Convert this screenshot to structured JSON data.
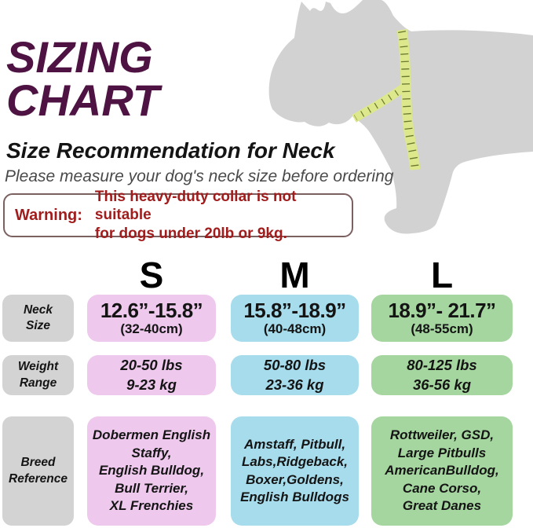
{
  "title": {
    "line1": "SIZING",
    "line2": "CHART"
  },
  "subtitle": "Size Recommendation for Neck",
  "note": "Please measure your dog's neck size before ordering",
  "warning": {
    "label": "Warning:",
    "lines": [
      "This heavy-duty collar is not suitable",
      "for dogs under 20lb or 9kg."
    ]
  },
  "illustration": {
    "name": "dog-silhouette-with-measuring-tape"
  },
  "colors": {
    "title_purple": "#4e1343",
    "warning_red": "#a11d1d",
    "warning_border": "#7b6060",
    "note_gray": "#4a4a4a",
    "label_gray": "#d3d3d3",
    "size_s_pink": "#eec9ed",
    "size_m_blue": "#a7dcec",
    "size_l_green": "#a5d69f",
    "dog_gray": "#d2d2d2",
    "tape_green": "#dde88c",
    "tape_tick": "#55641f"
  },
  "table": {
    "row_labels": {
      "neck": [
        "Neck",
        "Size"
      ],
      "weight": [
        "Weight",
        "Range"
      ],
      "breed": [
        "Breed",
        "Reference"
      ]
    },
    "columns": [
      {
        "letter": "S",
        "neck_in": "12.6”-15.8”",
        "neck_cm": "(32-40cm)",
        "weight": [
          "20-50 lbs",
          "9-23 kg"
        ],
        "breeds": [
          "Dobermen English",
          "Staffy,",
          "English Bulldog,",
          "Bull Terrier,",
          "XL Frenchies"
        ]
      },
      {
        "letter": "M",
        "neck_in": "15.8”-18.9”",
        "neck_cm": "(40-48cm)",
        "weight": [
          "50-80 lbs",
          "23-36 kg"
        ],
        "breeds": [
          "Amstaff, Pitbull,",
          "Labs,Ridgeback,",
          "Boxer,Goldens,",
          "English Bulldogs"
        ]
      },
      {
        "letter": "L",
        "neck_in": "18.9”- 21.7”",
        "neck_cm": "(48-55cm)",
        "weight": [
          "80-125 lbs",
          "36-56 kg"
        ],
        "breeds": [
          "Rottweiler, GSD,",
          "Large Pitbulls",
          "AmericanBulldog,",
          "Cane Corso,",
          "Great Danes"
        ]
      }
    ]
  },
  "chart_data": {
    "type": "table",
    "title": "SIZING CHART",
    "subtitle": "Size Recommendation for Neck",
    "columns": [
      "S",
      "M",
      "L"
    ],
    "rows": [
      {
        "label": "Neck Size",
        "values": [
          "12.6”-15.8” (32-40cm)",
          "15.8”-18.9” (40-48cm)",
          "18.9”- 21.7” (48-55cm)"
        ]
      },
      {
        "label": "Weight Range",
        "values": [
          "20-50 lbs / 9-23 kg",
          "50-80 lbs / 23-36 kg",
          "80-125 lbs / 36-56 kg"
        ]
      },
      {
        "label": "Breed Reference",
        "values": [
          "Dobermen English Staffy, English Bulldog, Bull Terrier, XL Frenchies",
          "Amstaff, Pitbull, Labs,Ridgeback, Boxer,Goldens, English Bulldogs",
          "Rottweiler, GSD, Large Pitbulls AmericanBulldog, Cane Corso, Great Danes"
        ]
      }
    ]
  }
}
